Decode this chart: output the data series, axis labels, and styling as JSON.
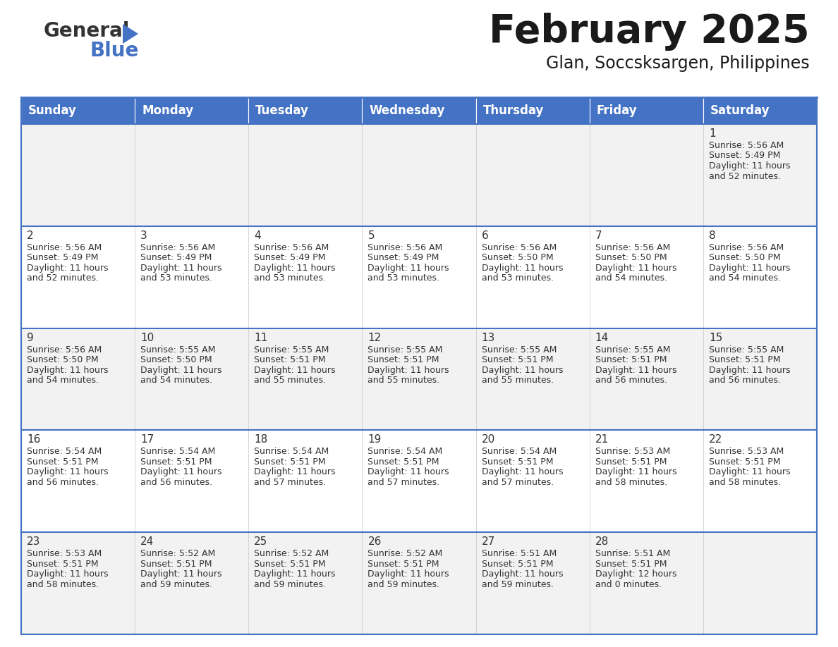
{
  "title": "February 2025",
  "subtitle": "Glan, Soccsksargen, Philippines",
  "days_of_week": [
    "Sunday",
    "Monday",
    "Tuesday",
    "Wednesday",
    "Thursday",
    "Friday",
    "Saturday"
  ],
  "header_bg": "#4472C4",
  "header_text": "#FFFFFF",
  "cell_bg_odd": "#F2F2F2",
  "cell_bg_even": "#FFFFFF",
  "cell_text": "#333333",
  "grid_line": "#4472C4",
  "title_color": "#1a1a1a",
  "subtitle_color": "#1a1a1a",
  "blue_color": "#4472C4",
  "calendar_data": [
    [
      null,
      null,
      null,
      null,
      null,
      null,
      1
    ],
    [
      2,
      3,
      4,
      5,
      6,
      7,
      8
    ],
    [
      9,
      10,
      11,
      12,
      13,
      14,
      15
    ],
    [
      16,
      17,
      18,
      19,
      20,
      21,
      22
    ],
    [
      23,
      24,
      25,
      26,
      27,
      28,
      null
    ]
  ],
  "sunrise_data": {
    "1": "5:56 AM",
    "2": "5:56 AM",
    "3": "5:56 AM",
    "4": "5:56 AM",
    "5": "5:56 AM",
    "6": "5:56 AM",
    "7": "5:56 AM",
    "8": "5:56 AM",
    "9": "5:56 AM",
    "10": "5:55 AM",
    "11": "5:55 AM",
    "12": "5:55 AM",
    "13": "5:55 AM",
    "14": "5:55 AM",
    "15": "5:55 AM",
    "16": "5:54 AM",
    "17": "5:54 AM",
    "18": "5:54 AM",
    "19": "5:54 AM",
    "20": "5:54 AM",
    "21": "5:53 AM",
    "22": "5:53 AM",
    "23": "5:53 AM",
    "24": "5:52 AM",
    "25": "5:52 AM",
    "26": "5:52 AM",
    "27": "5:51 AM",
    "28": "5:51 AM"
  },
  "sunset_data": {
    "1": "5:49 PM",
    "2": "5:49 PM",
    "3": "5:49 PM",
    "4": "5:49 PM",
    "5": "5:49 PM",
    "6": "5:50 PM",
    "7": "5:50 PM",
    "8": "5:50 PM",
    "9": "5:50 PM",
    "10": "5:50 PM",
    "11": "5:51 PM",
    "12": "5:51 PM",
    "13": "5:51 PM",
    "14": "5:51 PM",
    "15": "5:51 PM",
    "16": "5:51 PM",
    "17": "5:51 PM",
    "18": "5:51 PM",
    "19": "5:51 PM",
    "20": "5:51 PM",
    "21": "5:51 PM",
    "22": "5:51 PM",
    "23": "5:51 PM",
    "24": "5:51 PM",
    "25": "5:51 PM",
    "26": "5:51 PM",
    "27": "5:51 PM",
    "28": "5:51 PM"
  },
  "daylight_data": {
    "1": "11 hours\nand 52 minutes.",
    "2": "11 hours\nand 52 minutes.",
    "3": "11 hours\nand 53 minutes.",
    "4": "11 hours\nand 53 minutes.",
    "5": "11 hours\nand 53 minutes.",
    "6": "11 hours\nand 53 minutes.",
    "7": "11 hours\nand 54 minutes.",
    "8": "11 hours\nand 54 minutes.",
    "9": "11 hours\nand 54 minutes.",
    "10": "11 hours\nand 54 minutes.",
    "11": "11 hours\nand 55 minutes.",
    "12": "11 hours\nand 55 minutes.",
    "13": "11 hours\nand 55 minutes.",
    "14": "11 hours\nand 56 minutes.",
    "15": "11 hours\nand 56 minutes.",
    "16": "11 hours\nand 56 minutes.",
    "17": "11 hours\nand 56 minutes.",
    "18": "11 hours\nand 57 minutes.",
    "19": "11 hours\nand 57 minutes.",
    "20": "11 hours\nand 57 minutes.",
    "21": "11 hours\nand 58 minutes.",
    "22": "11 hours\nand 58 minutes.",
    "23": "11 hours\nand 58 minutes.",
    "24": "11 hours\nand 59 minutes.",
    "25": "11 hours\nand 59 minutes.",
    "26": "11 hours\nand 59 minutes.",
    "27": "11 hours\nand 59 minutes.",
    "28": "12 hours\nand 0 minutes."
  }
}
